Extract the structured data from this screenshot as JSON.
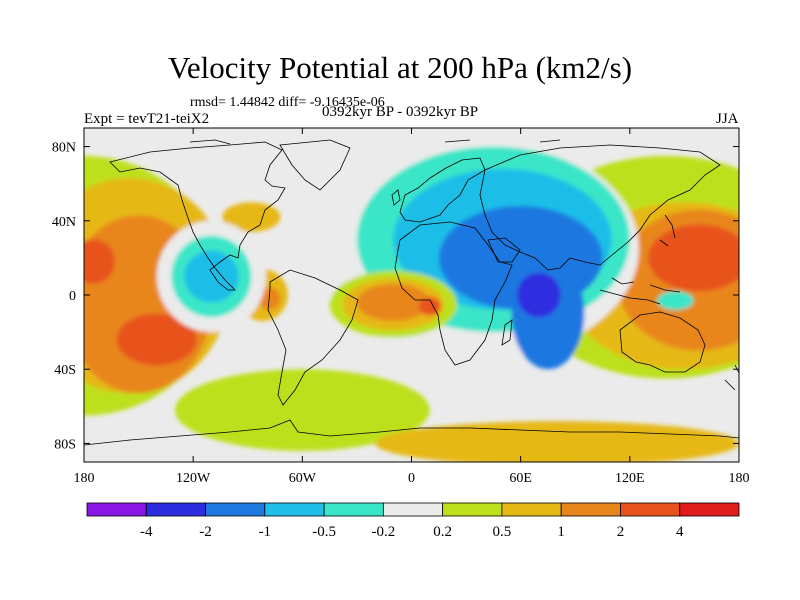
{
  "title": "Velocity Potential at 200 hPa (km2/s)",
  "stats": "rmsd= 1.44842 diff= -9.16435e-06",
  "experiment": "Expt = tevT21-teiX2",
  "period": "0392kyr BP - 0392kyr BP",
  "season": "JJA",
  "map": {
    "lon_range": [
      -180,
      180
    ],
    "lat_range": [
      -90,
      90
    ],
    "x_ticks": [
      {
        "lon": -180,
        "label": "180"
      },
      {
        "lon": -120,
        "label": "120W"
      },
      {
        "lon": -60,
        "label": "60W"
      },
      {
        "lon": 0,
        "label": "0"
      },
      {
        "lon": 60,
        "label": "60E"
      },
      {
        "lon": 120,
        "label": "120E"
      },
      {
        "lon": 180,
        "label": "180"
      }
    ],
    "y_ticks": [
      {
        "lat": 80,
        "label": "80N"
      },
      {
        "lat": 40,
        "label": "40N"
      },
      {
        "lat": 0,
        "label": "0"
      },
      {
        "lat": -40,
        "label": "40S"
      },
      {
        "lat": -80,
        "label": "80S"
      }
    ]
  },
  "colorbar": {
    "colors": [
      "#8a17e6",
      "#2d2de0",
      "#1e78e0",
      "#1ebee8",
      "#3ae6c8",
      "#ebebeb",
      "#bde01c",
      "#e6b814",
      "#e8861e",
      "#e8521e",
      "#e01c1c"
    ],
    "labels": [
      "-4",
      "-2",
      "-1",
      "-0.5",
      "-0.2",
      "0.2",
      "0.5",
      "1",
      "2",
      "4"
    ]
  },
  "chart_data": {
    "type": "heatmap",
    "variable": "Velocity Potential at 200 hPa",
    "units": "km2/s",
    "contour_levels": [
      -4,
      -2,
      -1,
      -0.5,
      -0.2,
      0.2,
      0.5,
      1,
      2,
      4
    ],
    "regions": [
      {
        "level": 0.2,
        "lon": 140,
        "lat": 15,
        "rx": 85,
        "ry": 60
      },
      {
        "level": 0.5,
        "lon": 150,
        "lat": 5,
        "rx": 65,
        "ry": 45
      },
      {
        "level": 1,
        "lon": 158,
        "lat": 8,
        "rx": 45,
        "ry": 38
      },
      {
        "level": 2,
        "lon": 158,
        "lat": 20,
        "rx": 28,
        "ry": 18
      },
      {
        "level": 0.2,
        "lon": -180,
        "lat": 5,
        "rx": 75,
        "ry": 70
      },
      {
        "level": 0.5,
        "lon": -155,
        "lat": 5,
        "rx": 55,
        "ry": 58
      },
      {
        "level": 1,
        "lon": -150,
        "lat": -5,
        "rx": 40,
        "ry": 48
      },
      {
        "level": 2,
        "lon": -175,
        "lat": 18,
        "rx": 12,
        "ry": 12
      },
      {
        "level": 2,
        "lon": -140,
        "lat": -24,
        "rx": 22,
        "ry": 14
      },
      {
        "level": 0.5,
        "lon": -82,
        "lat": 0,
        "rx": 14,
        "ry": 14
      },
      {
        "level": 1,
        "lon": -78,
        "lat": -2,
        "rx": 6,
        "ry": 6
      },
      {
        "level": 0.5,
        "lon": -88,
        "lat": 42,
        "rx": 16,
        "ry": 8
      },
      {
        "level": -0.2,
        "lon": -110,
        "lat": 10,
        "rx": 30,
        "ry": 30
      },
      {
        "level": -0.5,
        "lon": -110,
        "lat": 10,
        "rx": 22,
        "ry": 22
      },
      {
        "level": -1,
        "lon": -110,
        "lat": 10,
        "rx": 15,
        "ry": 14
      },
      {
        "level": -0.2,
        "lon": 35,
        "lat": 25,
        "rx": 90,
        "ry": 60
      },
      {
        "level": -0.5,
        "lon": 45,
        "lat": 30,
        "rx": 75,
        "ry": 50
      },
      {
        "level": -1,
        "lon": 50,
        "lat": 30,
        "rx": 60,
        "ry": 38
      },
      {
        "level": -2,
        "lon": 60,
        "lat": 20,
        "rx": 45,
        "ry": 28
      },
      {
        "level": -2,
        "lon": 75,
        "lat": -10,
        "rx": 20,
        "ry": 30
      },
      {
        "level": -4,
        "lon": 70,
        "lat": 0,
        "rx": 12,
        "ry": 12
      },
      {
        "level": 0.2,
        "lon": -10,
        "lat": -5,
        "rx": 35,
        "ry": 18
      },
      {
        "level": 0.5,
        "lon": -10,
        "lat": -5,
        "rx": 28,
        "ry": 14
      },
      {
        "level": 1,
        "lon": -10,
        "lat": -4,
        "rx": 20,
        "ry": 10
      },
      {
        "level": 2,
        "lon": 10,
        "lat": -6,
        "rx": 6,
        "ry": 5
      },
      {
        "level": -0.5,
        "lon": 145,
        "lat": -3,
        "rx": 10,
        "ry": 5
      },
      {
        "level": 0.2,
        "lon": -60,
        "lat": -62,
        "rx": 70,
        "ry": 22
      },
      {
        "level": 0.5,
        "lon": 80,
        "lat": -80,
        "rx": 100,
        "ry": 12
      }
    ]
  }
}
